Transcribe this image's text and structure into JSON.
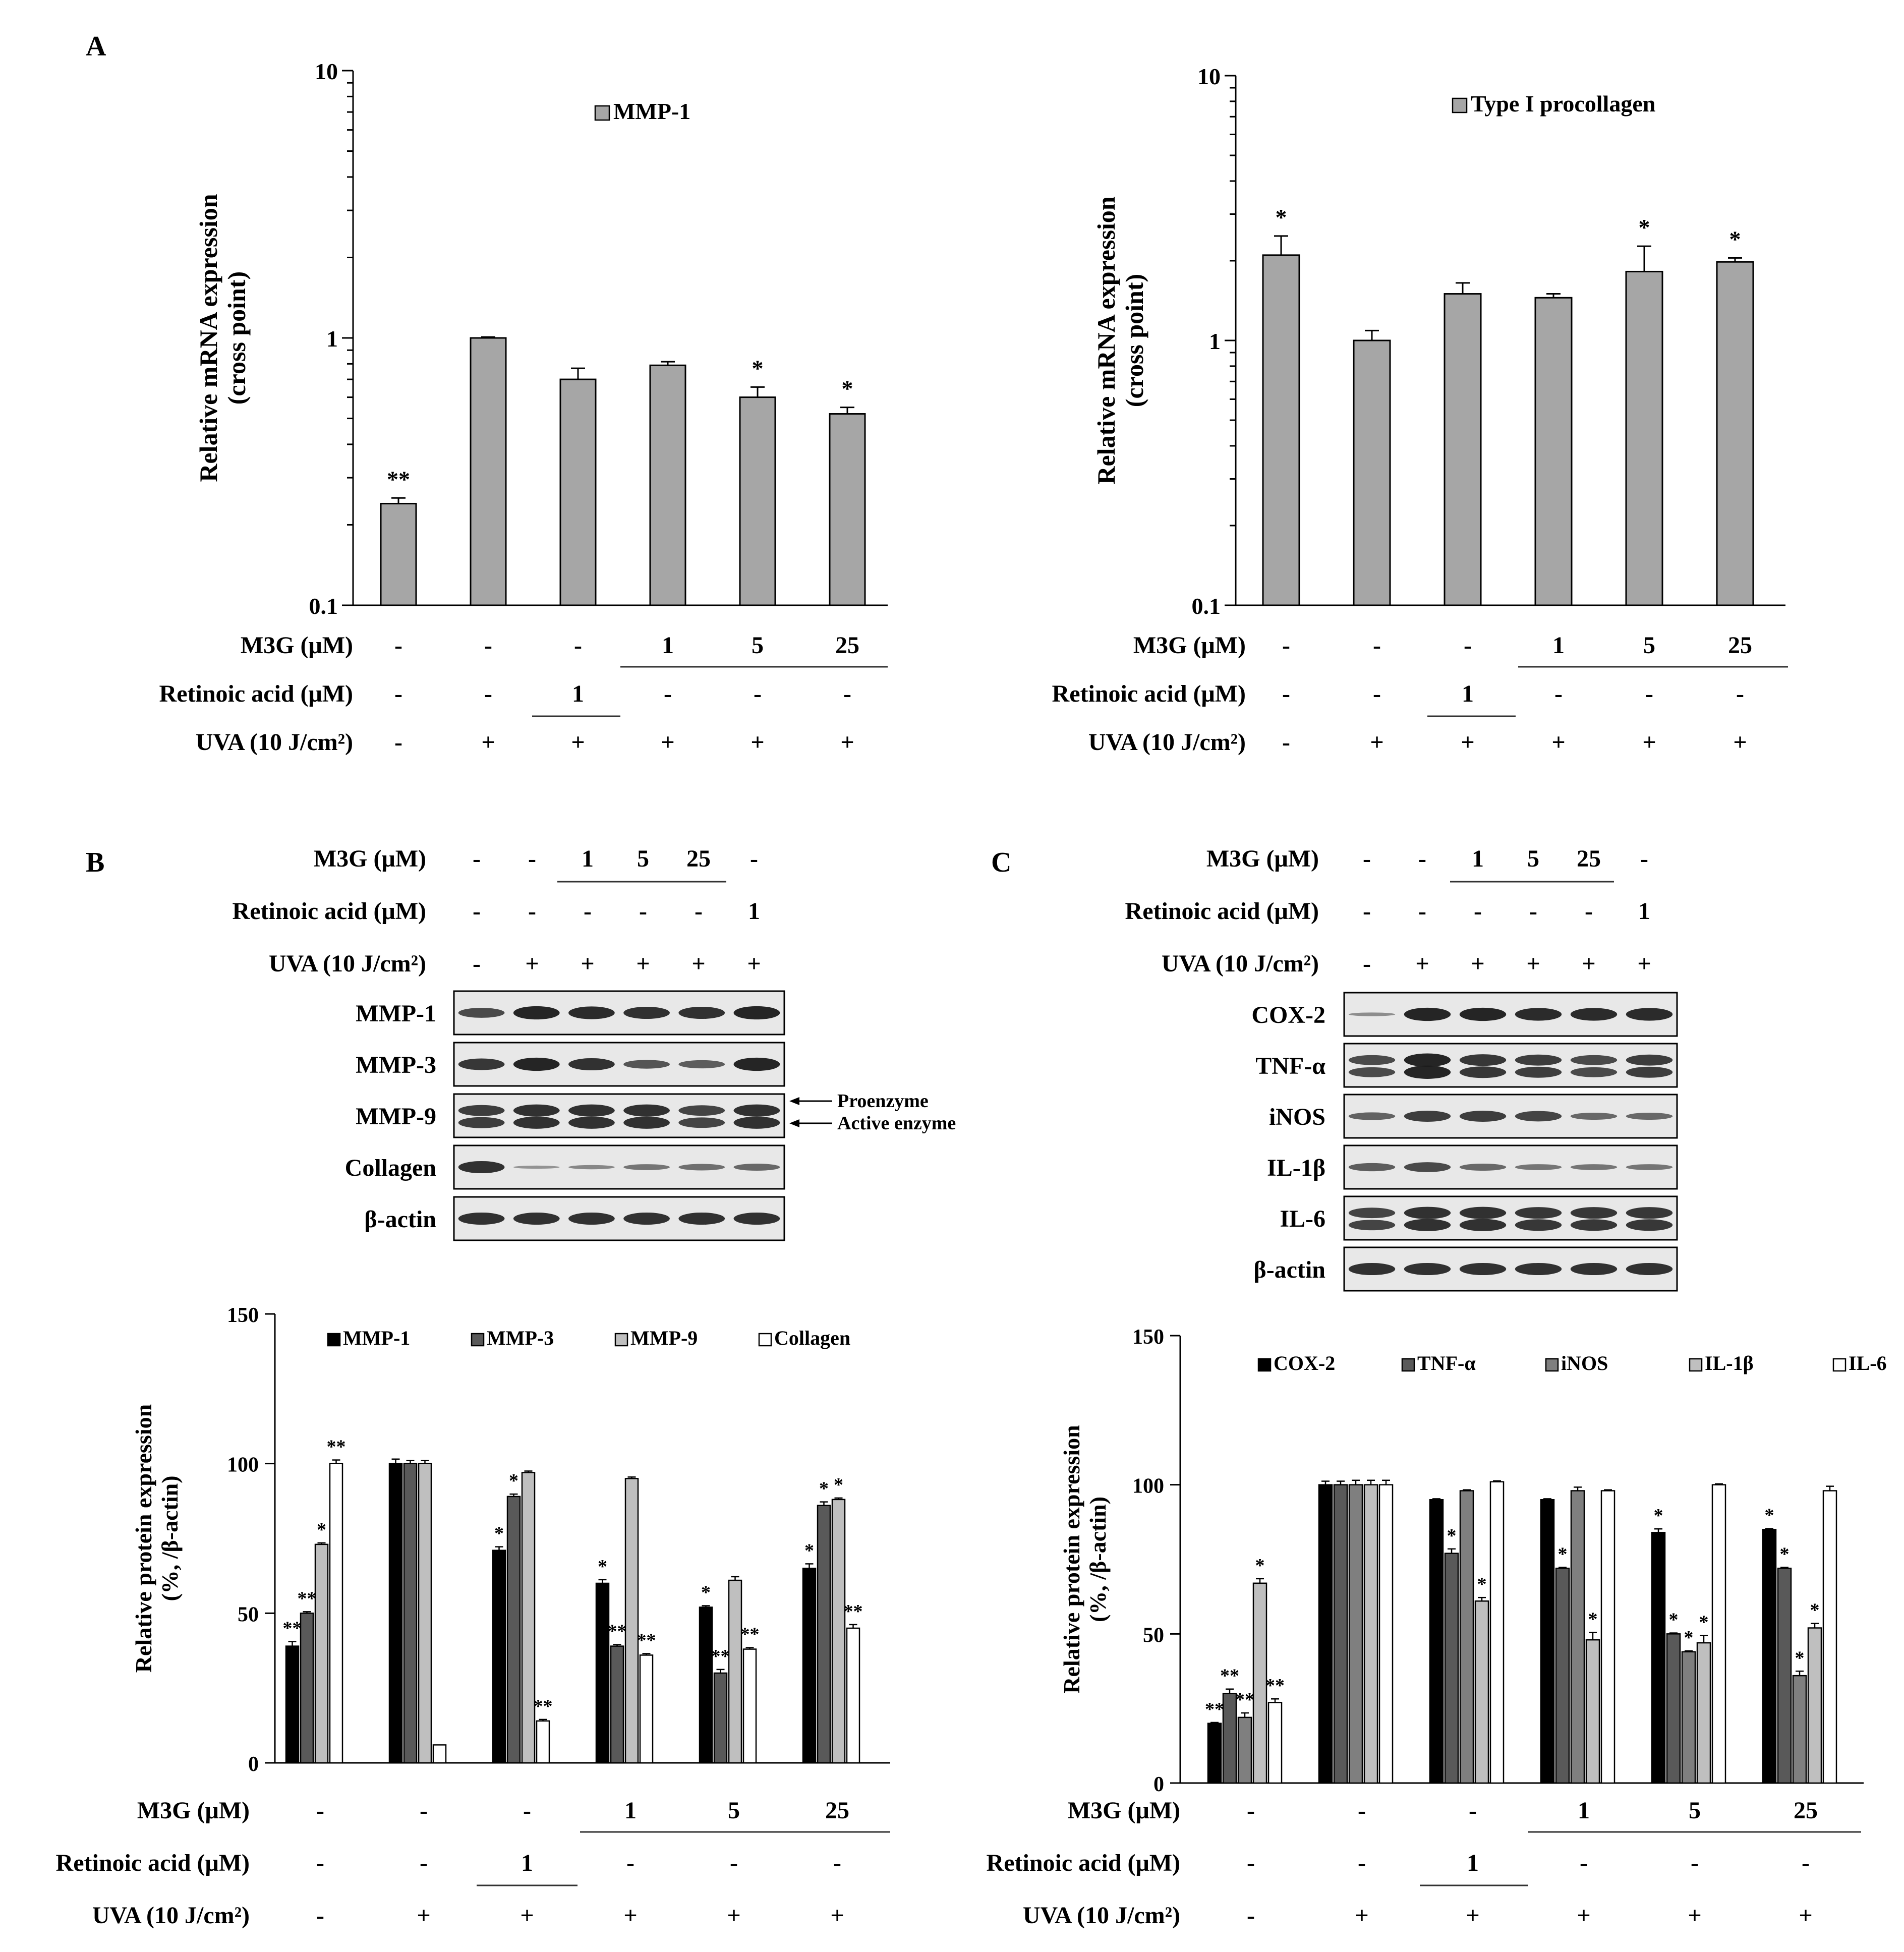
{
  "panel_labels": {
    "a": "A",
    "b": "B",
    "c": "C"
  },
  "colors": {
    "gray_bar": "#a6a6a6",
    "black": "#000000",
    "dark_gray": "#595959",
    "mid_gray": "#7f7f7f",
    "light_gray": "#bfbfbf",
    "white": "#ffffff",
    "blot_background": "#e8e8e8",
    "band": "#1a1a1a"
  },
  "treatment_rows": {
    "m3g_label": "M3G (μM)",
    "m3g_label_spaced": "M3G  (μM)",
    "retinoic_label": "Retinoic acid (μM)",
    "uva_label": "UVA (10 J/cm²)",
    "m3g_values": [
      "-",
      "-",
      "-",
      "1",
      "5",
      "25"
    ],
    "retinoic_values": [
      "-",
      "-",
      "1",
      "-",
      "-",
      "-"
    ],
    "uva_values": [
      "-",
      "+",
      "+",
      "+",
      "+",
      "+"
    ]
  },
  "blot_treatments": {
    "m3g_values": [
      "-",
      "-",
      "1",
      "5",
      "25",
      "-"
    ],
    "retinoic_values": [
      "-",
      "-",
      "-",
      "-",
      "-",
      "1"
    ],
    "uva_values": [
      "-",
      "+",
      "+",
      "+",
      "+",
      "+"
    ]
  },
  "blot_b": {
    "rows": [
      "MMP-1",
      "MMP-3",
      "MMP-9",
      "Collagen",
      "β-actin"
    ],
    "annotations": [
      "Proenzyme",
      "Active enzyme"
    ]
  },
  "blot_c": {
    "rows": [
      "COX-2",
      "TNF-α",
      "iNOS",
      "IL-1β",
      "IL-6",
      "β-actin"
    ]
  },
  "chart_data": [
    {
      "id": "A-left",
      "type": "bar",
      "yscale": "log",
      "ylim": [
        0.1,
        10
      ],
      "yticks": [
        "0.1",
        "1",
        "10"
      ],
      "ylabel": "Relative  mRNA expression",
      "ylabel2": "(cross point)",
      "series": [
        {
          "name": "MMP-1",
          "values": [
            0.24,
            1.0,
            0.7,
            0.79,
            0.6,
            0.52
          ],
          "errors": [
            0.012,
            0.008,
            0.07,
            0.025,
            0.055,
            0.03
          ],
          "significance": [
            "**",
            "",
            "",
            "",
            "*",
            "*"
          ]
        }
      ]
    },
    {
      "id": "A-right",
      "type": "bar",
      "yscale": "log",
      "ylim": [
        0.1,
        10
      ],
      "yticks": [
        "0.1",
        "1",
        "10"
      ],
      "ylabel": "Relative mRNA expression",
      "ylabel2": "(cross point)",
      "series": [
        {
          "name": "Type I procollagen",
          "values": [
            2.1,
            1.0,
            1.5,
            1.45,
            1.82,
            1.98
          ],
          "errors": [
            0.38,
            0.09,
            0.15,
            0.05,
            0.45,
            0.07
          ],
          "significance": [
            "*",
            "",
            "",
            "",
            "*",
            "*"
          ]
        }
      ]
    },
    {
      "id": "B-chart",
      "type": "bar",
      "ylim": [
        0,
        150
      ],
      "yticks": [
        "0",
        "50",
        "100",
        "150"
      ],
      "ylabel": "Relative protein expression",
      "ylabel2": "(%, /β-actin)",
      "series": [
        {
          "name": "MMP-1",
          "values": [
            39,
            100,
            71,
            60,
            52,
            65
          ],
          "errors": [
            1.5,
            1.5,
            1.2,
            1.2,
            0.5,
            1.5
          ],
          "significance": [
            "**",
            "",
            "*",
            "*",
            "*",
            "*"
          ]
        },
        {
          "name": "MMP-3",
          "values": [
            50,
            100,
            89,
            39,
            30,
            86
          ],
          "errors": [
            0.5,
            1,
            0.8,
            0.5,
            1.2,
            1.2
          ],
          "significance": [
            "**",
            "",
            "*",
            "**",
            "**",
            "*"
          ]
        },
        {
          "name": "MMP-9",
          "values": [
            73,
            100,
            97,
            95,
            61,
            88
          ],
          "errors": [
            0.5,
            1,
            0.5,
            0.5,
            1.2,
            0.5
          ],
          "significance": [
            "*",
            "",
            "",
            "",
            "",
            "*"
          ]
        },
        {
          "name": "Collagen",
          "values": [
            100,
            6,
            14,
            36,
            38,
            45
          ],
          "errors": [
            1.2,
            0,
            0.5,
            0.5,
            0.5,
            1.2
          ],
          "significance": [
            "**",
            "",
            "**",
            "**",
            "**",
            "**"
          ]
        }
      ]
    },
    {
      "id": "C-chart",
      "type": "bar",
      "ylim": [
        0,
        150
      ],
      "yticks": [
        "0",
        "50",
        "100",
        "150"
      ],
      "ylabel": "Relative protein expression",
      "ylabel2": "(%, /β-actin)",
      "series": [
        {
          "name": "COX-2",
          "values": [
            20,
            100,
            95,
            95,
            84,
            85
          ],
          "errors": [
            0.3,
            1.2,
            0.3,
            0.3,
            1.2,
            0.3
          ],
          "significance": [
            "**",
            "",
            "",
            "",
            "*",
            "*"
          ]
        },
        {
          "name": "TNF-α",
          "values": [
            30,
            100,
            77,
            72,
            50,
            72
          ],
          "errors": [
            1.5,
            1.2,
            1.5,
            0.3,
            0.3,
            0.3
          ],
          "significance": [
            "**",
            "",
            "*",
            "*",
            "*",
            "*"
          ]
        },
        {
          "name": "iNOS",
          "values": [
            22,
            100,
            98,
            98,
            44,
            36
          ],
          "errors": [
            1.5,
            1.5,
            0.3,
            1.2,
            0.3,
            1.5
          ],
          "significance": [
            "**",
            "",
            "",
            "",
            "*",
            "*"
          ]
        },
        {
          "name": "IL-1β",
          "values": [
            67,
            100,
            61,
            48,
            47,
            52
          ],
          "errors": [
            1.5,
            1.5,
            1.2,
            2.5,
            2.5,
            1.5
          ],
          "significance": [
            "*",
            "",
            "*",
            "*",
            "*",
            "*"
          ]
        },
        {
          "name": "IL-6",
          "values": [
            27,
            100,
            101,
            98,
            100,
            98
          ],
          "errors": [
            1.2,
            1.5,
            0.3,
            0.3,
            0.3,
            1.5
          ],
          "significance": [
            "**",
            "",
            "",
            "",
            "",
            ""
          ]
        }
      ]
    }
  ]
}
